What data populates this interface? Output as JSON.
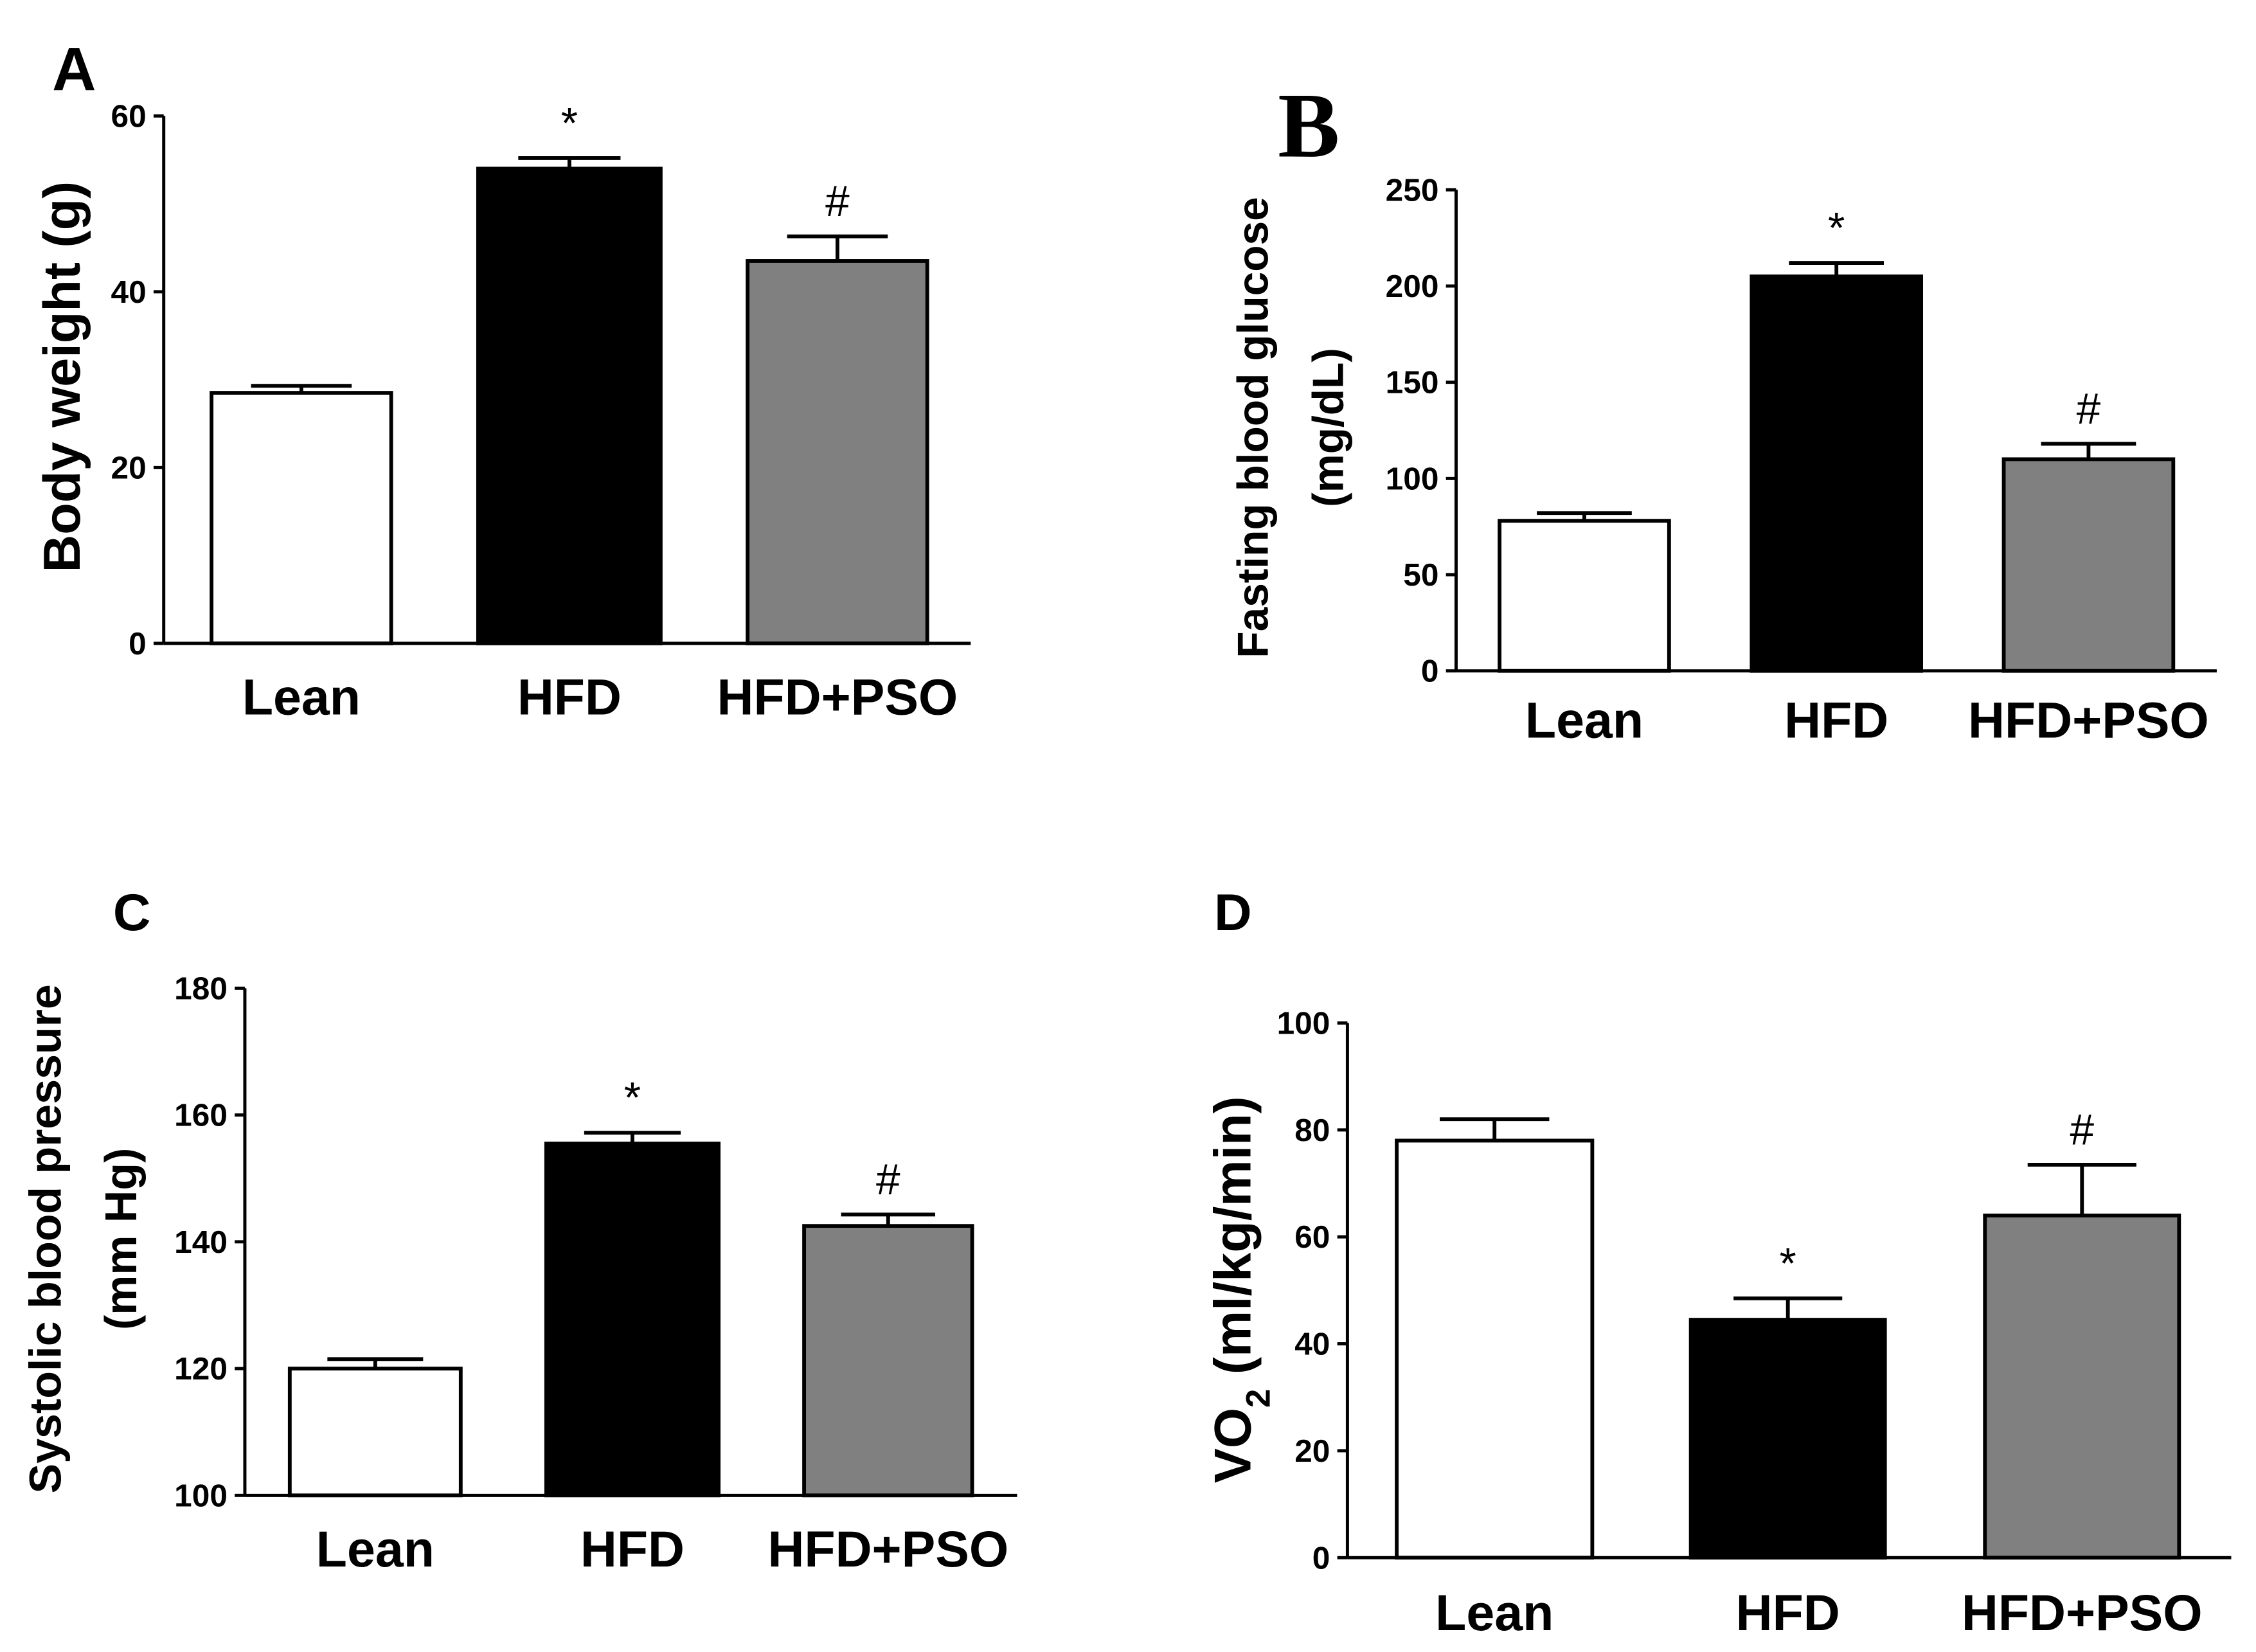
{
  "colors": {
    "axis": "#000000",
    "bar_outline": "#000000"
  },
  "chart_data": [
    {
      "panel_label": "A",
      "type": "bar",
      "title": "",
      "xlabel": "",
      "ylabel": "Body weight (g)",
      "ylim": [
        0,
        60
      ],
      "yticks": [
        0,
        20,
        40,
        60
      ],
      "categories": [
        "Lean",
        "HFD",
        "HFD+PSO"
      ],
      "values": [
        28.5,
        54.0,
        43.5
      ],
      "errors": [
        0.8,
        1.2,
        2.8
      ],
      "fills": [
        "#ffffff",
        "#000000",
        "#808080"
      ],
      "annotations": [
        "",
        "*",
        "#"
      ]
    },
    {
      "panel_label": "B",
      "type": "bar",
      "title": "",
      "xlabel": "",
      "ylabel": "Fasting blood glucose (mg/dL)",
      "ylabel_lines": [
        "Fasting blood glucose",
        "(mg/dL)"
      ],
      "ylim": [
        0,
        250
      ],
      "yticks": [
        0,
        50,
        100,
        150,
        200,
        250
      ],
      "categories": [
        "Lean",
        "HFD",
        "HFD+PSO"
      ],
      "values": [
        78,
        205,
        110
      ],
      "errors": [
        4,
        7,
        8
      ],
      "fills": [
        "#ffffff",
        "#000000",
        "#808080"
      ],
      "annotations": [
        "",
        "*",
        "#"
      ]
    },
    {
      "panel_label": "C",
      "type": "bar",
      "title": "",
      "xlabel": "",
      "ylabel": "Systolic blood pressure (mm Hg)",
      "ylabel_lines": [
        "Systolic blood pressure",
        "(mm Hg)"
      ],
      "ylim": [
        100,
        180
      ],
      "yticks": [
        100,
        120,
        140,
        160,
        180
      ],
      "categories": [
        "Lean",
        "HFD",
        "HFD+PSO"
      ],
      "values": [
        120,
        155.5,
        142.5
      ],
      "errors": [
        1.5,
        1.7,
        1.8
      ],
      "fills": [
        "#ffffff",
        "#000000",
        "#808080"
      ],
      "annotations": [
        "",
        "*",
        "#"
      ]
    },
    {
      "panel_label": "D",
      "type": "bar",
      "title": "",
      "xlabel": "",
      "ylabel": "VO2 (ml/kg/min)",
      "ylabel_parts": {
        "main": "VO",
        "sub": "2",
        "rest": " (ml/kg/min)"
      },
      "ylim": [
        0,
        100
      ],
      "yticks": [
        0,
        20,
        40,
        60,
        80,
        100
      ],
      "categories": [
        "Lean",
        "HFD",
        "HFD+PSO"
      ],
      "values": [
        78,
        44.5,
        64
      ],
      "errors": [
        4,
        4,
        9.5
      ],
      "fills": [
        "#ffffff",
        "#000000",
        "#808080"
      ],
      "annotations": [
        "",
        "*",
        "#"
      ]
    }
  ]
}
